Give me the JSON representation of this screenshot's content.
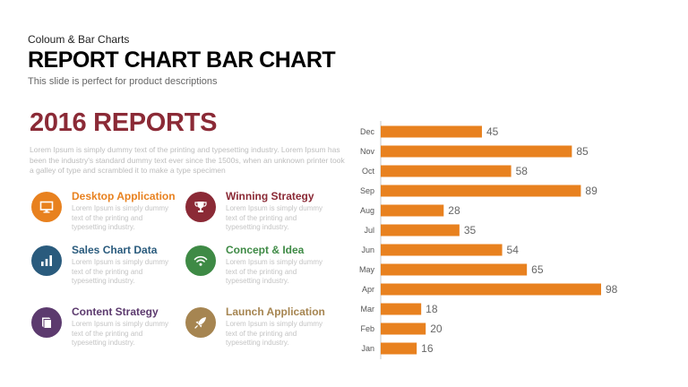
{
  "header": {
    "kicker": "Coloum  & Bar Charts",
    "title": "REPORT CHART BAR CHART",
    "subtitle": "This slide is perfect for product descriptions"
  },
  "report": {
    "title": "2016 REPORTS",
    "intro": "Lorem Ipsum is simply dummy text of the printing and typesetting industry. Lorem Ipsum has been the industry's standard dummy text ever since the 1500s, when an unknown printer took a galley of type and scrambled it to make a type specimen"
  },
  "features": [
    {
      "title": "Desktop Application",
      "desc": "Lorem Ipsum is simply dummy text of the printing and typesetting industry.",
      "color": "#e8811f",
      "title_color": "#e8811f",
      "icon": "monitor-icon"
    },
    {
      "title": "Winning Strategy",
      "desc": "Lorem Ipsum is simply dummy text of the printing and typesetting industry.",
      "color": "#8b2a36",
      "title_color": "#8b2a36",
      "icon": "trophy-icon"
    },
    {
      "title": "Sales Chart Data",
      "desc": "Lorem Ipsum is simply dummy text of the printing and typesetting industry.",
      "color": "#2a5b7d",
      "title_color": "#2a5b7d",
      "icon": "bar-chart-icon"
    },
    {
      "title": "Concept & Idea",
      "desc": "Lorem Ipsum is simply dummy text of the printing and typesetting industry.",
      "color": "#3e8a45",
      "title_color": "#3e8a45",
      "icon": "wifi-icon"
    },
    {
      "title": "Content Strategy",
      "desc": "Lorem Ipsum is simply dummy text of the printing and typesetting industry.",
      "color": "#5c3a6e",
      "title_color": "#5c3a6e",
      "icon": "book-icon"
    },
    {
      "title": "Launch Application",
      "desc": "Lorem Ipsum is simply dummy text of the printing and typesetting industry.",
      "color": "#a68551",
      "title_color": "#a68551",
      "icon": "rocket-icon"
    }
  ],
  "chart_data": {
    "type": "bar",
    "orientation": "horizontal",
    "categories": [
      "Dec",
      "Nov",
      "Oct",
      "Sep",
      "Aug",
      "Jul",
      "Jun",
      "May",
      "Apr",
      "Mar",
      "Feb",
      "Jan"
    ],
    "values": [
      45,
      85,
      58,
      89,
      28,
      35,
      54,
      65,
      98,
      18,
      20,
      16
    ],
    "bar_color": "#e8811f",
    "data_labels": true,
    "grid": false
  }
}
